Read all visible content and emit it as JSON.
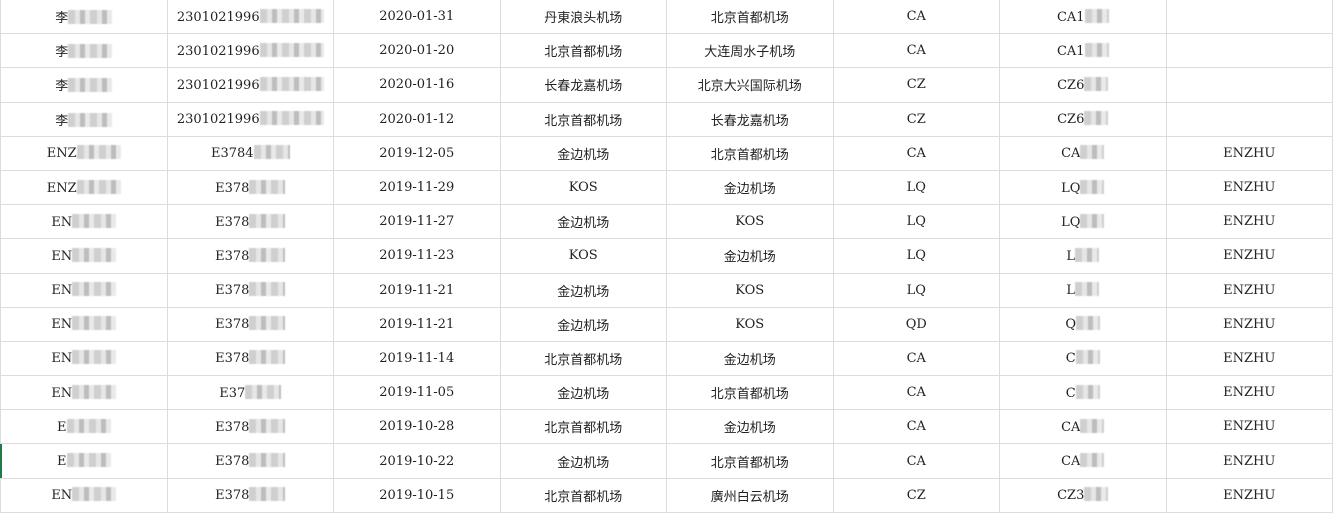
{
  "rows": [
    {
      "name": "李",
      "id": "230102199б",
      "date": "2020-01-31",
      "from": "丹東浪头机场",
      "to": "北京首都机场",
      "airline": "CA",
      "flight": "CA1",
      "passenger": ""
    },
    {
      "name": "李",
      "id": "230102199б",
      "date": "2020-01-20",
      "from": "北京首都机场",
      "to": "大连周水子机场",
      "airline": "CA",
      "flight": "CA1",
      "passenger": ""
    },
    {
      "name": "李",
      "id": "230102199б",
      "date": "2020-01-16",
      "from": "长春龙嘉机场",
      "to": "北京大兴国际机场",
      "airline": "CZ",
      "flight": "CZ6",
      "passenger": ""
    },
    {
      "name": "李",
      "id": "230102199б",
      "date": "2020-01-12",
      "from": "北京首都机场",
      "to": "长春龙嘉机场",
      "airline": "CZ",
      "flight": "CZ6",
      "passenger": ""
    },
    {
      "name": "ENZ",
      "id": "E3784",
      "date": "2019-12-05",
      "from": "金边机场",
      "to": "北京首都机场",
      "airline": "CA",
      "flight": "CA",
      "passenger": "ENZHU"
    },
    {
      "name": "ENZ",
      "id": "E378",
      "date": "2019-11-29",
      "from": "KOS",
      "to": "金边机场",
      "airline": "LQ",
      "flight": "LQ",
      "passenger": "ENZHU"
    },
    {
      "name": "EN",
      "id": "E378",
      "date": "2019-11-27",
      "from": "金边机场",
      "to": "KOS",
      "airline": "LQ",
      "flight": "LQ",
      "passenger": "ENZHU"
    },
    {
      "name": "EN",
      "id": "E378",
      "date": "2019-11-23",
      "from": "KOS",
      "to": "金边机场",
      "airline": "LQ",
      "flight": "L",
      "passenger": "ENZHU"
    },
    {
      "name": "EN",
      "id": "E378",
      "date": "2019-11-21",
      "from": "金边机场",
      "to": "KOS",
      "airline": "LQ",
      "flight": "L",
      "passenger": "ENZHU"
    },
    {
      "name": "EN",
      "id": "E378",
      "date": "2019-11-21",
      "from": "金边机场",
      "to": "KOS",
      "airline": "QD",
      "flight": "Q",
      "passenger": "ENZHU"
    },
    {
      "name": "EN",
      "id": "E378",
      "date": "2019-11-14",
      "from": "北京首都机场",
      "to": "金边机场",
      "airline": "CA",
      "flight": "C",
      "passenger": "ENZHU"
    },
    {
      "name": "EN",
      "id": "E37",
      "date": "2019-11-05",
      "from": "金边机场",
      "to": "北京首都机场",
      "airline": "CA",
      "flight": "C",
      "passenger": "ENZHU"
    },
    {
      "name": "E",
      "id": "E378",
      "date": "2019-10-28",
      "from": "北京首都机场",
      "to": "金边机场",
      "airline": "CA",
      "flight": "CA",
      "passenger": "ENZHU"
    },
    {
      "name": "E",
      "id": "E378",
      "date": "2019-10-22",
      "from": "金边机场",
      "to": "北京首都机场",
      "airline": "CA",
      "flight": "CA",
      "passenger": "ENZHU"
    },
    {
      "name": "EN",
      "id": "E378",
      "date": "2019-10-15",
      "from": "北京首都机场",
      "to": "廣州白云机场",
      "airline": "CZ",
      "flight": "CZ3",
      "passenger": "ENZHU"
    }
  ]
}
